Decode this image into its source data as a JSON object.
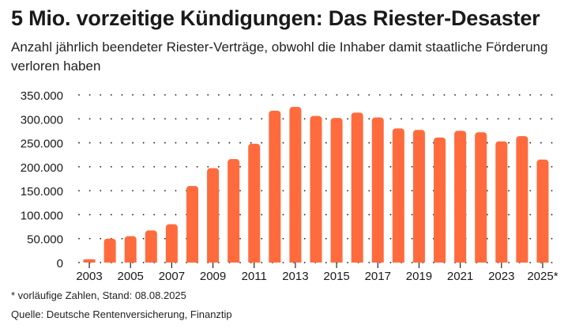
{
  "title": "5 Mio. vorzeitige Kündigungen: Das Riester-Desaster",
  "subtitle": "Anzahl jährlich beendeter Riester-Verträge, obwohl die Inhaber damit staatliche Förderung verloren haben",
  "footnote": "* vorläufige Zahlen, Stand: 08.08.2025",
  "source": "Quelle: Deutsche Rentenversicherung, Finanztip",
  "colors": {
    "bar": "#ff6b3d",
    "grid": "#222222",
    "text": "#1a1a1a"
  },
  "chart_data": {
    "type": "bar",
    "categories": [
      "2003",
      "2004",
      "2005",
      "2006",
      "2007",
      "2008",
      "2009",
      "2010",
      "2011",
      "2012",
      "2013",
      "2014",
      "2015",
      "2016",
      "2017",
      "2018",
      "2019",
      "2020",
      "2021",
      "2022",
      "2023",
      "2024",
      "2025"
    ],
    "values": [
      7000,
      50000,
      55000,
      67000,
      80000,
      160000,
      197000,
      216000,
      248000,
      317000,
      325000,
      306000,
      302000,
      313000,
      303000,
      280000,
      277000,
      261000,
      275000,
      272000,
      253000,
      264000,
      215000
    ],
    "x_tick_labels": [
      "2003",
      "2005",
      "2007",
      "2009",
      "2011",
      "2013",
      "2015",
      "2017",
      "2019",
      "2021",
      "2023",
      "2025*"
    ],
    "y_ticks": [
      0,
      50000,
      100000,
      150000,
      200000,
      250000,
      300000,
      350000
    ],
    "y_tick_labels": [
      "0",
      "50.000",
      "100.000",
      "150.000",
      "200.000",
      "250.000",
      "300.000",
      "350.000"
    ],
    "ylim": [
      0,
      350000
    ],
    "xlabel": "",
    "ylabel": "",
    "grid": true,
    "legend": "none"
  }
}
